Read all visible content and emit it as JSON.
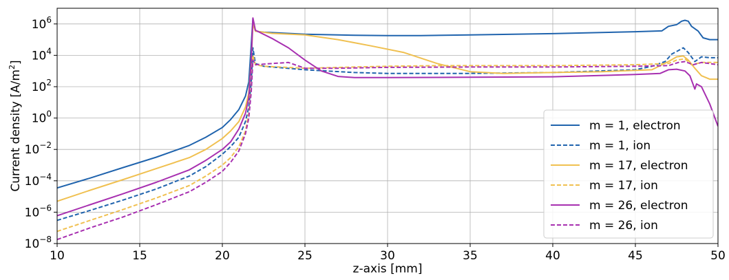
{
  "chart_data": {
    "type": "line",
    "title": "",
    "xlabel": "z-axis [mm]",
    "ylabel": "Current density [A/m",
    "ylabel_sup": "2",
    "ylabel_end": "]",
    "xlim": [
      10,
      50
    ],
    "ylim": [
      1e-08,
      10000000.0
    ],
    "yscale": "log",
    "grid": true,
    "legend_position": "right",
    "x_ticks": [
      10,
      15,
      20,
      25,
      30,
      35,
      40,
      45,
      50
    ],
    "y_ticks": [
      -8,
      -6,
      -4,
      -2,
      0,
      2,
      4,
      6
    ],
    "series": [
      {
        "name": "m = 1, electron",
        "color": "#1f63ad",
        "dash": "solid",
        "points": [
          [
            10,
            3.5e-05
          ],
          [
            12,
            0.00015
          ],
          [
            14,
            0.0007
          ],
          [
            16,
            0.0032
          ],
          [
            18,
            0.018
          ],
          [
            19,
            0.06
          ],
          [
            20,
            0.25
          ],
          [
            20.5,
            0.8
          ],
          [
            21,
            3.5
          ],
          [
            21.4,
            25
          ],
          [
            21.6,
            200
          ],
          [
            21.75,
            50000.0
          ],
          [
            21.85,
            2200000.0
          ],
          [
            22,
            350000.0
          ],
          [
            22.5,
            300000.0
          ],
          [
            25,
            220000.0
          ],
          [
            28,
            190000.0
          ],
          [
            30,
            180000.0
          ],
          [
            32,
            180000.0
          ],
          [
            35,
            200000.0
          ],
          [
            40,
            240000.0
          ],
          [
            45,
            320000.0
          ],
          [
            46.6,
            360000.0
          ],
          [
            47,
            700000.0
          ],
          [
            47.5,
            900000.0
          ],
          [
            47.8,
            1500000.0
          ],
          [
            48,
            1700000.0
          ],
          [
            48.2,
            1500000.0
          ],
          [
            48.4,
            700000.0
          ],
          [
            48.8,
            350000.0
          ],
          [
            49.1,
            130000.0
          ],
          [
            49.5,
            100000.0
          ],
          [
            50,
            100000.0
          ]
        ]
      },
      {
        "name": "m = 1, ion",
        "color": "#1f63ad",
        "dash": "dashed",
        "points": [
          [
            10,
            3e-07
          ],
          [
            12,
            1.3e-06
          ],
          [
            14,
            6e-06
          ],
          [
            16,
            3e-05
          ],
          [
            18,
            0.0002
          ],
          [
            19,
            0.0008
          ],
          [
            20,
            0.005
          ],
          [
            20.5,
            0.015
          ],
          [
            21,
            0.06
          ],
          [
            21.4,
            0.6
          ],
          [
            21.6,
            5
          ],
          [
            21.75,
            200
          ],
          [
            21.85,
            30000.0
          ],
          [
            22,
            3000.0
          ],
          [
            22.5,
            2000.0
          ],
          [
            25,
            1200.0
          ],
          [
            28,
            800
          ],
          [
            30,
            700
          ],
          [
            35,
            700
          ],
          [
            40,
            800
          ],
          [
            45,
            1200.0
          ],
          [
            46,
            2000.0
          ],
          [
            46.8,
            4000.0
          ],
          [
            47.2,
            12000.0
          ],
          [
            47.6,
            20000.0
          ],
          [
            47.9,
            30000.0
          ],
          [
            48.2,
            15000.0
          ],
          [
            48.6,
            4000.0
          ],
          [
            49,
            8000.0
          ],
          [
            49.5,
            7000.0
          ],
          [
            50,
            7000.0
          ]
        ]
      },
      {
        "name": "m = 17, electron",
        "color": "#f0c050",
        "dash": "solid",
        "points": [
          [
            10,
            5e-06
          ],
          [
            12,
            2.5e-05
          ],
          [
            14,
            0.00012
          ],
          [
            16,
            0.0006
          ],
          [
            18,
            0.003
          ],
          [
            19,
            0.01
          ],
          [
            20,
            0.05
          ],
          [
            20.5,
            0.15
          ],
          [
            21,
            0.6
          ],
          [
            21.4,
            5
          ],
          [
            21.6,
            40
          ],
          [
            21.75,
            5000.0
          ],
          [
            21.85,
            1000000.0
          ],
          [
            22,
            350000.0
          ],
          [
            23,
            250000.0
          ],
          [
            25,
            200000.0
          ],
          [
            27,
            100000.0
          ],
          [
            29,
            40000.0
          ],
          [
            31,
            15000.0
          ],
          [
            33,
            3000.0
          ],
          [
            35,
            900
          ],
          [
            37,
            700
          ],
          [
            40,
            800
          ],
          [
            43,
            900
          ],
          [
            46,
            1200.0
          ],
          [
            47,
            4000.0
          ],
          [
            47.5,
            8000.0
          ],
          [
            47.9,
            9000.0
          ],
          [
            48.2,
            5000.0
          ],
          [
            48.6,
            1500.0
          ],
          [
            49,
            500
          ],
          [
            49.5,
            300
          ],
          [
            50,
            300
          ]
        ]
      },
      {
        "name": "m = 17, ion",
        "color": "#f0c050",
        "dash": "dashed",
        "points": [
          [
            10,
            6e-08
          ],
          [
            12,
            3e-07
          ],
          [
            14,
            1.5e-06
          ],
          [
            16,
            8e-06
          ],
          [
            18,
            5e-05
          ],
          [
            19,
            0.0002
          ],
          [
            20,
            0.001
          ],
          [
            20.5,
            0.003
          ],
          [
            21,
            0.015
          ],
          [
            21.4,
            0.15
          ],
          [
            21.6,
            2
          ],
          [
            21.75,
            100
          ],
          [
            21.85,
            10000.0
          ],
          [
            22,
            2500.0
          ],
          [
            22.5,
            2000.0
          ],
          [
            25,
            1500.0
          ],
          [
            28,
            1800.0
          ],
          [
            30,
            2000.0
          ],
          [
            33,
            2200.0
          ],
          [
            35,
            2200.0
          ],
          [
            40,
            2200.0
          ],
          [
            45,
            2500.0
          ],
          [
            47,
            3000.0
          ],
          [
            47.5,
            5000.0
          ],
          [
            48,
            6000.0
          ],
          [
            48.4,
            2500.0
          ],
          [
            49,
            3500.0
          ],
          [
            50,
            3500.0
          ]
        ]
      },
      {
        "name": "m = 26, electron",
        "color": "#a72fb0",
        "dash": "solid",
        "points": [
          [
            10,
            6e-07
          ],
          [
            12,
            3e-06
          ],
          [
            14,
            1.5e-05
          ],
          [
            16,
            8e-05
          ],
          [
            18,
            0.0005
          ],
          [
            19,
            0.002
          ],
          [
            20,
            0.01
          ],
          [
            20.5,
            0.03
          ],
          [
            21,
            0.2
          ],
          [
            21.4,
            2
          ],
          [
            21.6,
            20
          ],
          [
            21.75,
            5000.0
          ],
          [
            21.85,
            2400000.0
          ],
          [
            22,
            400000.0
          ],
          [
            23,
            120000.0
          ],
          [
            24,
            30000.0
          ],
          [
            25,
            5000.0
          ],
          [
            26,
            1000.0
          ],
          [
            27,
            450
          ],
          [
            28,
            380
          ],
          [
            30,
            380
          ],
          [
            35,
            400
          ],
          [
            40,
            430
          ],
          [
            45,
            600
          ],
          [
            46.5,
            700
          ],
          [
            47,
            1200.0
          ],
          [
            47.5,
            1300.0
          ],
          [
            48,
            1000.0
          ],
          [
            48.3,
            500
          ],
          [
            48.6,
            70
          ],
          [
            48.7,
            150
          ],
          [
            49,
            100
          ],
          [
            49.5,
            8
          ],
          [
            50,
            0.3
          ]
        ]
      },
      {
        "name": "m = 26, ion",
        "color": "#a72fb0",
        "dash": "dashed",
        "points": [
          [
            10,
            1.8e-08
          ],
          [
            12,
            1e-07
          ],
          [
            14,
            5e-07
          ],
          [
            16,
            3e-06
          ],
          [
            18,
            2e-05
          ],
          [
            19,
            8e-05
          ],
          [
            20,
            0.0004
          ],
          [
            20.5,
            0.0015
          ],
          [
            21,
            0.008
          ],
          [
            21.4,
            0.1
          ],
          [
            21.6,
            1
          ],
          [
            21.75,
            50
          ],
          [
            21.85,
            5000.0
          ],
          [
            22,
            2500.0
          ],
          [
            23,
            3000.0
          ],
          [
            24,
            3500.0
          ],
          [
            25,
            1500.0
          ],
          [
            27,
            1500.0
          ],
          [
            30,
            1700.0
          ],
          [
            35,
            1800.0
          ],
          [
            40,
            1800.0
          ],
          [
            45,
            2000.0
          ],
          [
            47,
            2200.0
          ],
          [
            47.6,
            3500.0
          ],
          [
            48,
            4000.0
          ],
          [
            48.5,
            2500.0
          ],
          [
            49,
            3500.0
          ],
          [
            50,
            2500.0
          ]
        ]
      }
    ]
  },
  "style": {
    "axis_color": "#000000",
    "grid_color": "#b0b0b0",
    "legend_edge": "#cccccc"
  }
}
